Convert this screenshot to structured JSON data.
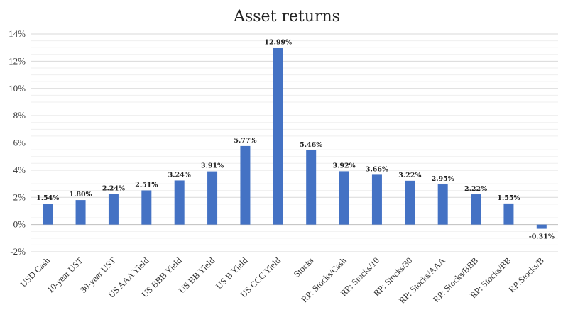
{
  "chart_data": {
    "type": "bar",
    "title": "Asset returns",
    "xlabel": "",
    "ylabel": "",
    "ylim": [
      -2,
      14
    ],
    "yticks": [
      "-2%",
      "0%",
      "2%",
      "4%",
      "6%",
      "8%",
      "10%",
      "12%",
      "14%"
    ],
    "ytick_values": [
      -2,
      0,
      2,
      4,
      6,
      8,
      10,
      12,
      14
    ],
    "grid": "horizontal major and minor",
    "legend": "none",
    "bar_color": "#4472c4",
    "categories": [
      "USD Cash",
      "10-year UST",
      "30-year UST",
      "US AAA Yield",
      "US BBB Yield",
      "US BB Yield",
      "US B Yield",
      "US CCC Yield",
      "Stocks",
      "RP: Stocks/Cash",
      "RP: Stocks/10",
      "RP: Stocks/30",
      "RP: Stocks/AAA",
      "RP: Stocks/BBB",
      "RP: Stocks/BB",
      "RP:Stocks/B"
    ],
    "values": [
      1.54,
      1.8,
      2.24,
      2.51,
      3.24,
      3.91,
      5.77,
      12.99,
      5.46,
      3.92,
      3.66,
      3.22,
      2.95,
      2.22,
      1.55,
      -0.31
    ],
    "data_labels": [
      "1.54%",
      "1.80%",
      "2.24%",
      "2.51%",
      "3.24%",
      "3.91%",
      "5.77%",
      "12.99%",
      "5.46%",
      "3.92%",
      "3.66%",
      "3.22%",
      "2.95%",
      "2.22%",
      "1.55%",
      "-0.31%"
    ]
  }
}
